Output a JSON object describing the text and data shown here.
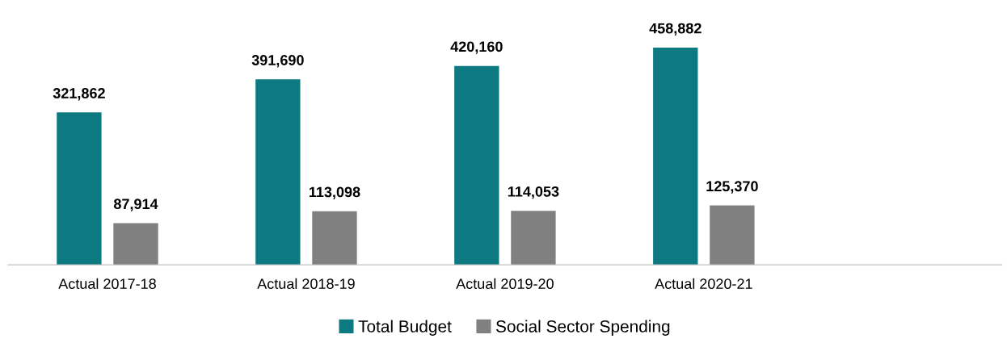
{
  "chart_data": {
    "type": "bar",
    "categories": [
      "Actual 2017-18",
      "Actual 2018-19",
      "Actual 2019-20",
      "Actual 2020-21",
      null
    ],
    "series": [
      {
        "name": "Total Budget",
        "color": "#0c7a80",
        "values": [
          321862,
          391690,
          420160,
          458882,
          null
        ],
        "value_labels": [
          "321,862",
          "391,690",
          "420,160",
          "458,882",
          null
        ]
      },
      {
        "name": "Social Sector Spending",
        "color": "#808080",
        "values": [
          87914,
          113098,
          114053,
          125370,
          null
        ],
        "value_labels": [
          "87,914",
          "113,098",
          "114,053",
          "125,370",
          null
        ]
      }
    ],
    "legend": "bottom",
    "grid": false
  }
}
